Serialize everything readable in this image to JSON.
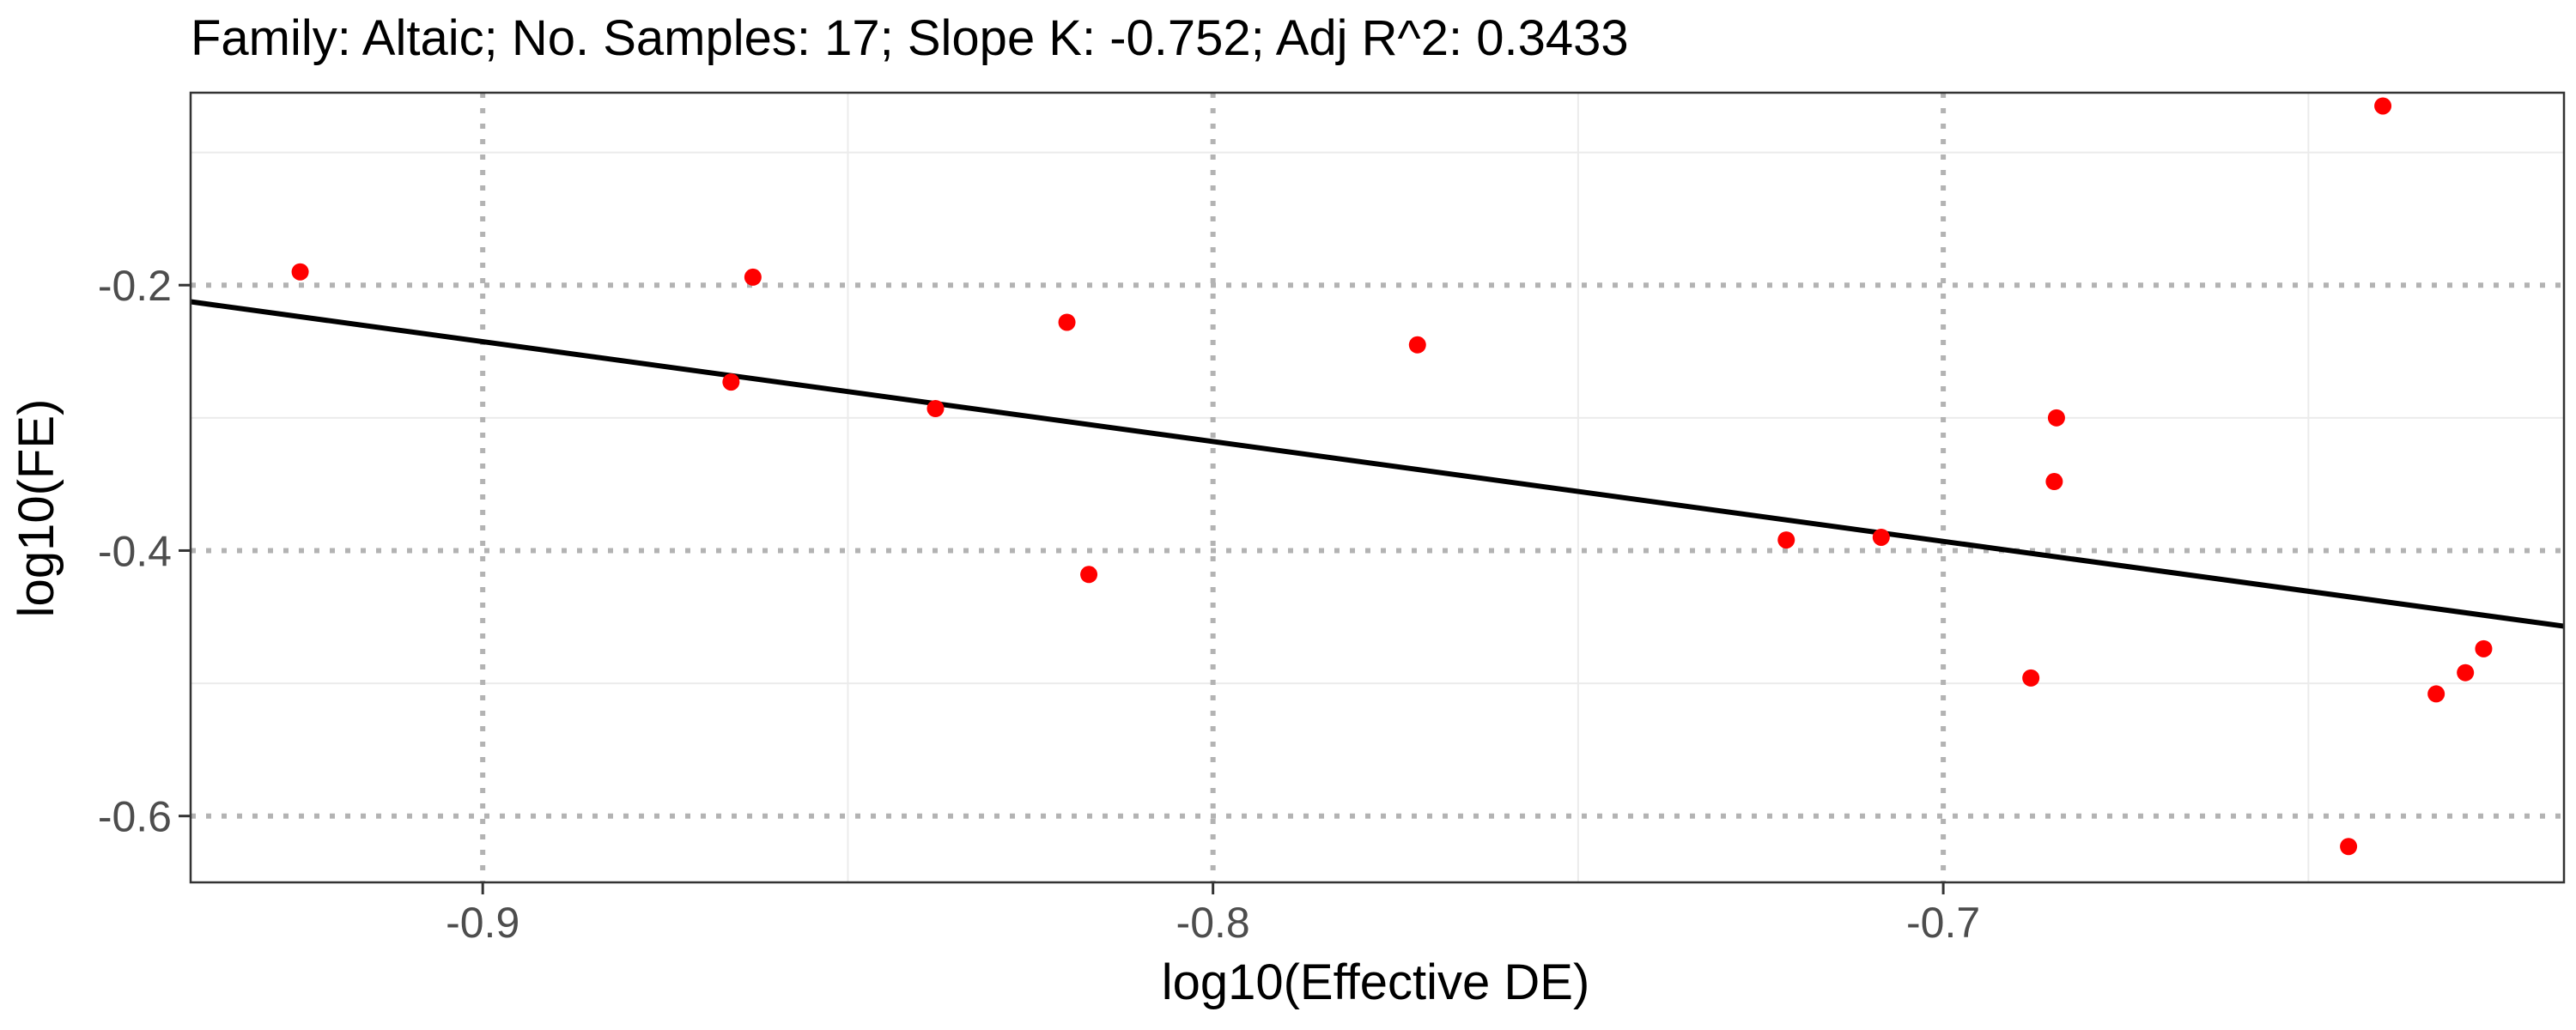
{
  "chart_data": {
    "type": "scatter",
    "title": "Family: Altaic; No. Samples: 17; Slope K: -0.752; Adj R^2: 0.3433",
    "xlabel": "log10(Effective DE)",
    "ylabel": "log10(FE)",
    "xlim": [
      -0.94,
      -0.615
    ],
    "ylim": [
      -0.65,
      -0.055
    ],
    "x_ticks": [
      -0.9,
      -0.8,
      -0.7
    ],
    "x_tick_labels": [
      "-0.9",
      "-0.8",
      "-0.7"
    ],
    "y_ticks": [
      -0.6,
      -0.4,
      -0.2
    ],
    "y_tick_labels": [
      "-0.6",
      "-0.4",
      "-0.2"
    ],
    "x_minor_grid": [
      -0.85,
      -0.75,
      -0.65
    ],
    "y_minor_grid": [
      -0.5,
      -0.3,
      -0.1
    ],
    "grid": true,
    "points_color": "#ff0000",
    "line_color": "#000000",
    "series": [
      {
        "points": [
          {
            "x": -0.925,
            "y": -0.19
          },
          {
            "x": -0.866,
            "y": -0.273
          },
          {
            "x": -0.863,
            "y": -0.194
          },
          {
            "x": -0.838,
            "y": -0.293
          },
          {
            "x": -0.82,
            "y": -0.228
          },
          {
            "x": -0.817,
            "y": -0.418
          },
          {
            "x": -0.772,
            "y": -0.245
          },
          {
            "x": -0.6445,
            "y": -0.623
          },
          {
            "x": -0.6398,
            "y": -0.065
          },
          {
            "x": -0.7215,
            "y": -0.392
          },
          {
            "x": -0.7085,
            "y": -0.39
          },
          {
            "x": -0.688,
            "y": -0.496
          },
          {
            "x": -0.6845,
            "y": -0.3
          },
          {
            "x": -0.6848,
            "y": -0.348
          },
          {
            "x": -0.6325,
            "y": -0.508
          },
          {
            "x": -0.6285,
            "y": -0.492
          },
          {
            "x": -0.626,
            "y": -0.474
          }
        ]
      }
    ],
    "regression_line": {
      "x": [
        -0.94,
        -0.615
      ],
      "y": [
        -0.2125,
        -0.457
      ]
    }
  }
}
